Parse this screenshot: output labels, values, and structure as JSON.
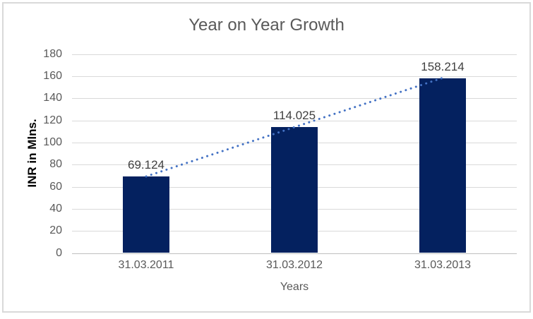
{
  "window": {
    "background": "#FFFFFF",
    "border_color": "#D9D9D9"
  },
  "chart_data": {
    "type": "bar",
    "title": "Year on Year Growth",
    "categories": [
      "31.03.2011",
      "31.03.2012",
      "31.03.2013"
    ],
    "values": [
      69.124,
      114.025,
      158.214
    ],
    "data_labels": [
      "69.124",
      "114.025",
      "158.214"
    ],
    "xlabel": "Years",
    "ylabel": "INR in Mlns.",
    "ylim": [
      0,
      180
    ],
    "yticks": [
      0,
      20,
      40,
      60,
      80,
      100,
      120,
      140,
      160,
      180
    ],
    "grid": true,
    "legend": "none",
    "bar_color": "#04215F",
    "trendline": {
      "type": "linear",
      "style": "dotted",
      "color": "#4472C4"
    },
    "colors": {
      "title": "#595959",
      "tick_labels": "#595959",
      "data_labels": "#404040",
      "gridline": "#D9D9D9",
      "axis_line": "#BFBFBF",
      "ylabel_color": "#000000"
    }
  }
}
